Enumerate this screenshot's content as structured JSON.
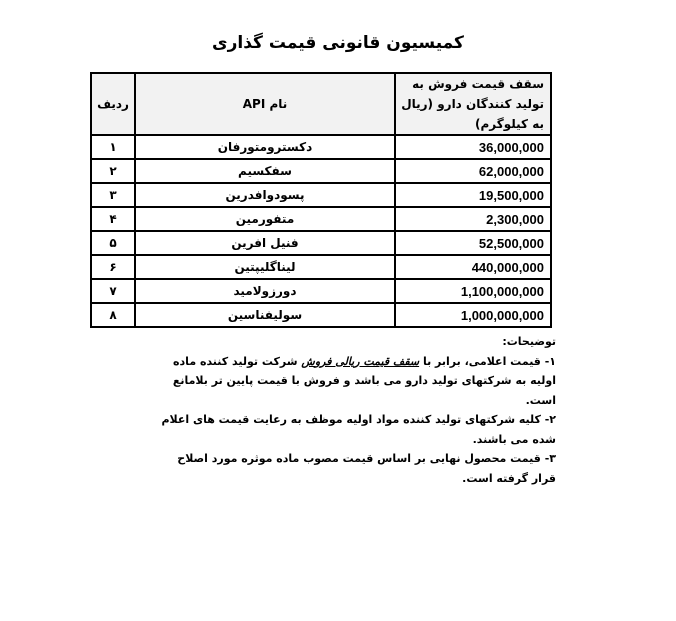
{
  "title": "کمیسیون قانونی قیمت گذاری",
  "table": {
    "headers": [
      "ردیف",
      "نام API",
      "سقف قیمت فروش به تولید کنندگان دارو (ریال به کیلوگرم)"
    ],
    "rows": [
      [
        "۱",
        "دکسترومتورفان",
        "36,000,000"
      ],
      [
        "۲",
        "سفکسیم",
        "62,000,000"
      ],
      [
        "۳",
        "پسودوافدرین",
        "19,500,000"
      ],
      [
        "۴",
        "متفورمین",
        "2,300,000"
      ],
      [
        "۵",
        "فنیل افرین",
        "52,500,000"
      ],
      [
        "۶",
        "لیناگلیپتین",
        "440,000,000"
      ],
      [
        "۷",
        "دورزولامید",
        "1,100,000,000"
      ],
      [
        "۸",
        "سولیفناسین",
        "1,000,000,000"
      ]
    ]
  },
  "notes": {
    "heading": "توضیحات:",
    "first": {
      "before": "۱- قیمت اعلامی، برابر با",
      "emphasis": "سقف قیمت ریالی فروش",
      "after": "شرکت تولید کننده ماده اولیه به شرکتهای تولید دارو می باشد و فروش با قیمت پایین تر بلامانع است."
    },
    "second": "۲- کلیه شرکتهای تولید کننده مواد اولیه موظف به رعایت قیمت های اعلام شده می باشند.",
    "third": "۳- قیمت محصول نهایی بر اساس قیمت مصوب ماده موثره مورد اصلاح قرار گرفته است."
  }
}
